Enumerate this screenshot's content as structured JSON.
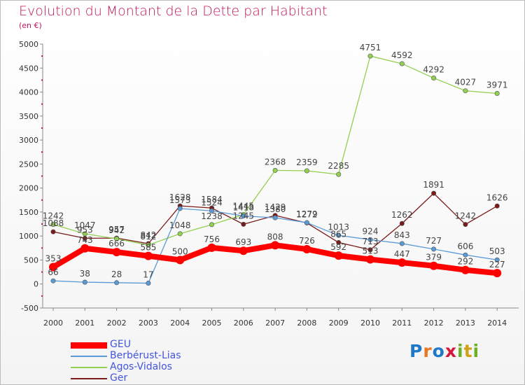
{
  "chart_data": {
    "type": "line",
    "title": "Evolution du Montant de la Dette par Habitant",
    "subtitle": "(en €)",
    "x": [
      "2000",
      "2001",
      "2002",
      "2003",
      "2004",
      "2005",
      "2006",
      "2007",
      "2008",
      "2009",
      "2010",
      "2011",
      "2012",
      "2013",
      "2014"
    ],
    "ylim": [
      -500,
      5000
    ],
    "yticks": [
      "-500",
      "0",
      "500",
      "1000",
      "1500",
      "2000",
      "2500",
      "3000",
      "3500",
      "4000",
      "4500",
      "5000"
    ],
    "grid": false,
    "legend_position": "bottom-left",
    "series": [
      {
        "name": "GEU",
        "color": "#ff0000",
        "values": [
          353,
          743,
          666,
          585,
          500,
          756,
          693,
          808,
          726,
          592,
          513,
          447,
          379,
          292,
          227
        ]
      },
      {
        "name": "Berbérust-Lias",
        "color": "#5b9bd5",
        "values": [
          66,
          38,
          28,
          17,
          1573,
          1524,
          1418,
          1380,
          1279,
          1013,
          924,
          843,
          727,
          606,
          503
        ]
      },
      {
        "name": "Agos-Vidalos",
        "color": "#92d050",
        "values": [
          1242,
          1047,
          942,
          812,
          1048,
          1238,
          1445,
          2368,
          2359,
          2285,
          4751,
          4592,
          4292,
          4027,
          3971
        ]
      },
      {
        "name": "Ger",
        "color": "#7b1a1a",
        "values": [
          1088,
          953,
          957,
          842,
          1628,
          1584,
          1245,
          1429,
          1272,
          865,
          713,
          1262,
          1891,
          1242,
          1626
        ]
      }
    ]
  },
  "logo": {
    "letters": [
      "P",
      "r",
      "o",
      "x",
      "i",
      "t",
      "i"
    ],
    "colors": [
      "#1f78c8",
      "#e87722",
      "#1f78c8",
      "#d4163c",
      "#6ab023",
      "#d4a017",
      "#6ab023"
    ]
  }
}
